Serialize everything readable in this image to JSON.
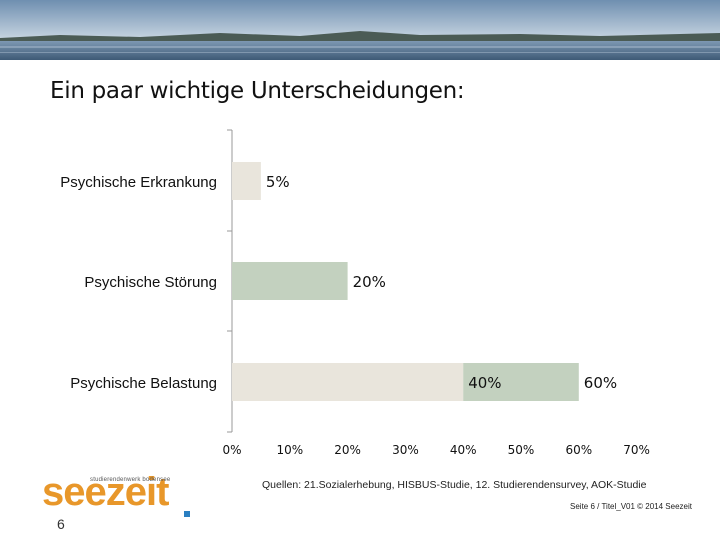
{
  "slide": {
    "title": "Ein paar wichtige Unterscheidungen:",
    "sources": "Quellen: 21.Sozialerhebung, HISBUS-Studie, 12. Studierendensurvey, AOK-Studie",
    "footer": "Seite 6 / Titel_V01 © 2014 Seezeit",
    "page_number": "6",
    "logo_tagline": "studierendenwerk bodensee",
    "logo_word": "seezeit"
  },
  "colors": {
    "bar_light": "#e9e5dc",
    "bar_green": "#c3d1bf",
    "axis": "#999999",
    "logo_orange": "#e8972a",
    "logo_blue": "#2a7fc1"
  },
  "chart_data": {
    "type": "bar",
    "orientation": "horizontal",
    "categories": [
      "Psychische Erkrankung",
      "Psychische Störung",
      "Psychische Belastung"
    ],
    "bars": [
      {
        "category": "Psychische Erkrankung",
        "segments": [
          {
            "from": 0,
            "to": 5,
            "color": "#e9e5dc"
          }
        ],
        "labels": [
          "5%"
        ]
      },
      {
        "category": "Psychische Störung",
        "segments": [
          {
            "from": 0,
            "to": 20,
            "color": "#c3d1bf"
          }
        ],
        "labels": [
          "20%"
        ]
      },
      {
        "category": "Psychische Belastung",
        "segments": [
          {
            "from": 0,
            "to": 40,
            "color": "#e9e5dc"
          },
          {
            "from": 40,
            "to": 60,
            "color": "#c3d1bf"
          }
        ],
        "labels": [
          "40%",
          "60%"
        ]
      }
    ],
    "x_ticks": [
      "0%",
      "10%",
      "20%",
      "30%",
      "40%",
      "50%",
      "60%",
      "70%"
    ],
    "xlim": [
      0,
      70
    ],
    "grid": false
  }
}
